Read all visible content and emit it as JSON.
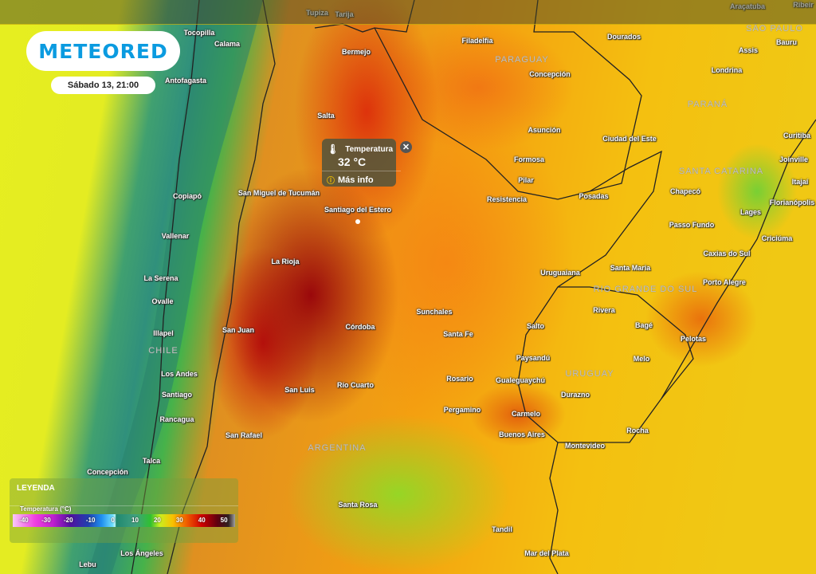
{
  "brand": {
    "logo_text": "METEORED",
    "accent_color": "#0b9be0"
  },
  "timestamp": "Sábado 13, 21:00",
  "popup": {
    "icon": "thermometer-icon",
    "title": "Temperatura",
    "value": "32 °C",
    "more_info": "Más info",
    "close_icon": "close-icon"
  },
  "legend": {
    "title": "LEYENDA",
    "variable": "Temperatura (°C)",
    "ticks": [
      "-40",
      "-30",
      "-20",
      "-10",
      "0",
      "10",
      "20",
      "30",
      "40",
      "50"
    ]
  },
  "map": {
    "cities": [
      "Tupiza",
      "Tarija",
      "Araçatuba",
      "Ribeir",
      "Bauru",
      "Tocopilla",
      "Calama",
      "Dourados",
      "Filadelfia",
      "Bermejo",
      "Assis",
      "Concepción",
      "Londrina",
      "Antofagasta",
      "Salta",
      "Asunción",
      "Ciudad del Este",
      "Formosa",
      "Curitiba",
      "Joinville",
      "Pilar",
      "Itajaí",
      "San Miguel de Tucumán",
      "Copiapó",
      "Resistencia",
      "Posadas",
      "Chapecó",
      "Florianópolis",
      "Santiago del Estero",
      "Lages",
      "Vallenar",
      "Passo Fundo",
      "Criciúma",
      "La Rioja",
      "Caxias do Sul",
      "Uruguaiana",
      "Santa Maria",
      "La Serena",
      "Porto Alegre",
      "Ovalle",
      "Sunchales",
      "Rivera",
      "Bagé",
      "San Juan",
      "Córdoba",
      "Salto",
      "Illapel",
      "Santa Fe",
      "Pelotas",
      "Melo",
      "Paysandú",
      "Los Andes",
      "Rosario",
      "Gualeguaychú",
      "Río Cuarto",
      "San Luis",
      "Santiago",
      "Durazno",
      "Pergamino",
      "Carmelo",
      "Rancagua",
      "Rocha",
      "Buenos Aires",
      "San Rafael",
      "Montevideo",
      "Talca",
      "Santa Rosa",
      "Concepción",
      "Los Ángeles",
      "Lebu",
      "Tandil",
      "Mar del Plata"
    ],
    "regions": [
      "SÃO PAULO",
      "PARAGUAY",
      "PARANÁ",
      "SANTA CATARINA",
      "RIO GRANDE DO SUL",
      "CHILE",
      "URUGUAY",
      "ARGENTINA"
    ]
  }
}
